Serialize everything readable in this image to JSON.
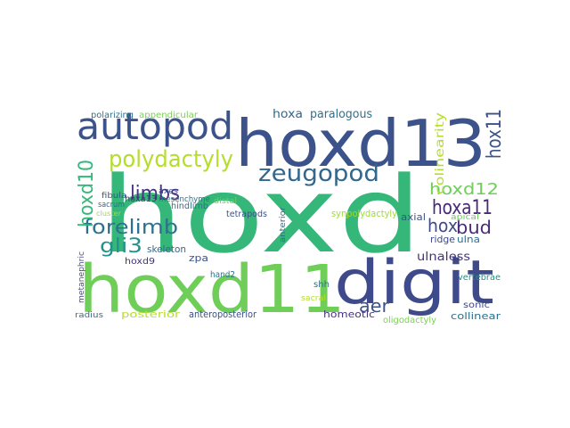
{
  "word_cloud": {
    "words": [
      {
        "text": "hoxd",
        "color": "#35b779"
      },
      {
        "text": "hoxd13",
        "color": "#3b528b"
      },
      {
        "text": "hoxd11",
        "color": "#6ece58"
      },
      {
        "text": "digit",
        "color": "#3e4a89"
      },
      {
        "text": "autopod",
        "color": "#3b528b"
      },
      {
        "text": "zeugopod",
        "color": "#31688e"
      },
      {
        "text": "polydactyly",
        "color": "#b5de2b"
      },
      {
        "text": "forelimb",
        "color": "#2c728e"
      },
      {
        "text": "limbs",
        "color": "#46337e"
      },
      {
        "text": "gli3",
        "color": "#21918c"
      },
      {
        "text": "hoxd10",
        "color": "#35b779"
      },
      {
        "text": "hox11",
        "color": "#3b528b"
      },
      {
        "text": "hoxa11",
        "color": "#482878"
      },
      {
        "text": "hoxd12",
        "color": "#6ece58"
      },
      {
        "text": "bud",
        "color": "#472c7a"
      },
      {
        "text": "hox",
        "color": "#3e4a89"
      },
      {
        "text": "aer",
        "color": "#3b528b"
      },
      {
        "text": "ulnaless",
        "color": "#46337e"
      },
      {
        "text": "colinearity",
        "color": "#b5de2b"
      },
      {
        "text": "paralogous",
        "color": "#2c728e"
      },
      {
        "text": "hoxa",
        "color": "#31688e"
      },
      {
        "text": "appendicular",
        "color": "#7ad151"
      },
      {
        "text": "polarizing",
        "color": "#2c728e"
      },
      {
        "text": "synpolydactyly",
        "color": "#9fda3a"
      },
      {
        "text": "axial",
        "color": "#3b528b"
      },
      {
        "text": "apical",
        "color": "#6ece58"
      },
      {
        "text": "ridge",
        "color": "#3e4a89"
      },
      {
        "text": "ulna",
        "color": "#2c728e"
      },
      {
        "text": "vertebrae",
        "color": "#21918c"
      },
      {
        "text": "shh",
        "color": "#2c728e"
      },
      {
        "text": "homeotic",
        "color": "#46337e"
      },
      {
        "text": "oligodactyly",
        "color": "#7ad151"
      },
      {
        "text": "collinear",
        "color": "#2c728e"
      },
      {
        "text": "sonic",
        "color": "#3e4a89"
      },
      {
        "text": "anteroposterior",
        "color": "#3b528b"
      },
      {
        "text": "posterior",
        "color": "#b5de2b"
      },
      {
        "text": "radius",
        "color": "#2c728e"
      },
      {
        "text": "metanephric",
        "color": "#3e4a89"
      },
      {
        "text": "hoxd9",
        "color": "#46337e"
      },
      {
        "text": "skeleton",
        "color": "#31688e"
      },
      {
        "text": "zpa",
        "color": "#3b528b"
      },
      {
        "text": "hand2",
        "color": "#2c728e"
      },
      {
        "text": "sacral",
        "color": "#b5de2b"
      },
      {
        "text": "hindlimb",
        "color": "#2c728e"
      },
      {
        "text": "tetrapods",
        "color": "#3b528b"
      },
      {
        "text": "distal",
        "color": "#6ece58"
      },
      {
        "text": "hoxa13",
        "color": "#46337e"
      },
      {
        "text": "mesenchyme",
        "color": "#2c728e"
      },
      {
        "text": "axes",
        "color": "#3e4a89"
      },
      {
        "text": "fibula",
        "color": "#3b528b"
      },
      {
        "text": "sacrum",
        "color": "#31688e"
      },
      {
        "text": "cluster",
        "color": "#9fda3a"
      },
      {
        "text": "anterior",
        "color": "#2c728e"
      }
    ]
  }
}
